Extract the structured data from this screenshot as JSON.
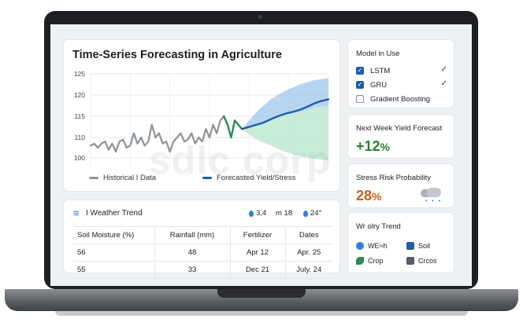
{
  "chart": {
    "title": "Time-Series Forecasting in Agriculture",
    "legend": {
      "historical": "Historical I Data",
      "forecast": "Forecasted Yield/Stress"
    }
  },
  "chart_data": {
    "type": "line",
    "title": "Time-Series Forecasting in Agriculture",
    "xlabel": "",
    "ylabel": "",
    "ylim": [
      75,
      125
    ],
    "yticks": [
      125,
      120,
      115,
      110,
      100,
      75
    ],
    "grid": true,
    "legend_position": "bottom",
    "series": [
      {
        "name": "Historical I Data",
        "color": "#8e9296",
        "x": [
          0,
          1,
          2,
          3,
          4,
          5,
          6,
          7,
          8,
          9,
          10,
          11,
          12,
          13,
          14,
          15,
          16,
          17,
          18,
          19,
          20,
          21,
          22,
          23,
          24,
          25,
          26,
          27,
          28,
          29,
          30,
          31,
          32,
          33,
          34,
          35,
          36,
          37
        ],
        "y": [
          106,
          107,
          105,
          107,
          108,
          104,
          107,
          103,
          108,
          109,
          105,
          106,
          111,
          107,
          110,
          106,
          108,
          113,
          110,
          111,
          107,
          108,
          103,
          108,
          110,
          111,
          108,
          109,
          111,
          107,
          110,
          108,
          112,
          110,
          113,
          111,
          114,
          115
        ]
      },
      {
        "name": "Transition",
        "color": "#2e8b57",
        "x": [
          37,
          38,
          39,
          40,
          41,
          42
        ],
        "y": [
          115,
          113,
          110,
          114,
          113,
          112
        ]
      },
      {
        "name": "Forecasted Yield/Stress",
        "color": "#1f5ea8",
        "x": [
          42,
          44,
          46,
          48,
          50,
          52,
          54,
          56,
          58,
          60,
          62,
          64,
          66
        ],
        "y": [
          112,
          112.5,
          113,
          113.5,
          114.3,
          115,
          115.6,
          116,
          116.5,
          117.2,
          118,
          118.6,
          119
        ]
      }
    ],
    "band_upper": {
      "color": "#9cc7ec",
      "x": [
        42,
        46,
        50,
        54,
        58,
        62,
        66
      ],
      "lower": [
        112,
        113,
        114.5,
        115.5,
        116,
        117,
        117.5
      ],
      "upper": [
        112,
        116,
        119,
        121,
        122.5,
        123.5,
        124
      ]
    },
    "band_lower": {
      "color": "#b7e6cc",
      "x": [
        42,
        46,
        50,
        54,
        58,
        62,
        66
      ],
      "lower": [
        112,
        109,
        106,
        103,
        101,
        99,
        97
      ],
      "upper": [
        112,
        113,
        114.5,
        115.5,
        116,
        117,
        117.5
      ]
    }
  },
  "weather": {
    "title": "I Weather Trend",
    "meta": [
      {
        "icon": "drop-icon",
        "value": "3,4"
      },
      {
        "icon": "m-icon",
        "value": "m 18"
      },
      {
        "icon": "drop-icon",
        "value": "24°"
      }
    ],
    "columns": [
      "Soil Moisture (%)",
      "Rainfall (mm)",
      "Fertilizer",
      "Dates"
    ],
    "rows": [
      [
        "56",
        "48",
        "Apr 12",
        "Apr. 25"
      ],
      [
        "55",
        "33",
        "Dec 21",
        "July. 24"
      ]
    ]
  },
  "models": {
    "title": "Model in Use",
    "items": [
      {
        "label": "LSTM",
        "checked": true
      },
      {
        "label": "GRU",
        "checked": true
      },
      {
        "label": "Gradient Boosting",
        "checked": false
      }
    ],
    "check_glyph": "✓",
    "checkmark": "✓"
  },
  "yield": {
    "title": "Next Week Yield Forecast",
    "value": "+12",
    "unit": "%",
    "color": "#2e7d32"
  },
  "stress": {
    "title": "Stress Risk Probability",
    "value": "28",
    "unit": "%",
    "color": "#c4621c",
    "rain": "• • •"
  },
  "trend": {
    "title": "Wr olry Trend",
    "items": [
      {
        "icon": "weather-icon",
        "label": "WE≈h",
        "color": "#2f7fd8"
      },
      {
        "icon": "soil-icon",
        "label": "Soil",
        "color": "#1f5ea8"
      },
      {
        "icon": "crop-icon",
        "label": "Crop",
        "color": "#2e8b57"
      },
      {
        "icon": "crops-icon",
        "label": "Crcos",
        "color": "#555b61"
      }
    ]
  },
  "watermark": "sdlc corp"
}
